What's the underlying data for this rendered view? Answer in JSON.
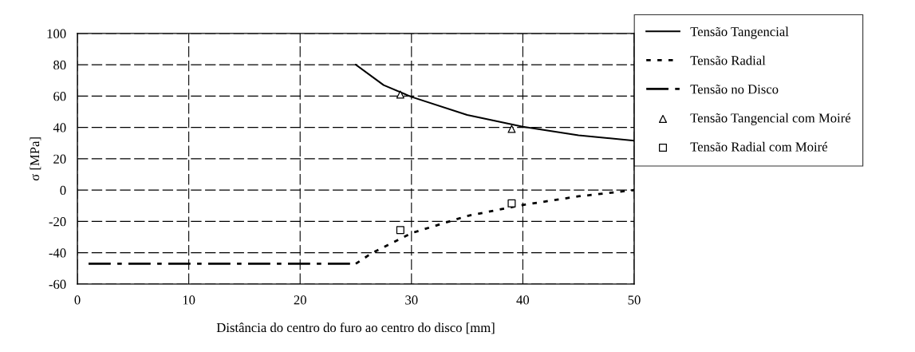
{
  "chart_data": {
    "type": "line",
    "xlabel": "Distância do centro do furo ao centro do disco [mm]",
    "ylabel": "σ [MPa]",
    "xlim": [
      0,
      50
    ],
    "xticks": [
      0,
      10,
      20,
      30,
      40,
      50
    ],
    "ylim": [
      -60,
      100
    ],
    "yticks": [
      -60,
      -40,
      -20,
      0,
      20,
      40,
      60,
      80,
      100
    ],
    "grid": true,
    "legend": "right",
    "series": [
      {
        "name": "Tensão Tangencial",
        "line_style": "solid",
        "color": "#000000",
        "x": [
          25,
          27.5,
          30,
          35,
          40,
          45,
          50
        ],
        "values": [
          80,
          67,
          59.5,
          48,
          40.5,
          35,
          31.5
        ]
      },
      {
        "name": "Tensão Radial",
        "line_style": "dotted",
        "color": "#000000",
        "x": [
          25,
          26.5,
          30,
          35,
          40,
          45,
          50
        ],
        "values": [
          -47,
          -40,
          -27.5,
          -16.5,
          -9.5,
          -4,
          0
        ]
      },
      {
        "name": "Tensão no Disco",
        "line_style": "dashdot",
        "color": "#000000",
        "x": [
          1,
          25
        ],
        "values": [
          -47,
          -47
        ]
      },
      {
        "name": "Tensão Tangencial com Moiré",
        "type": "scatter",
        "marker": "triangle",
        "color": "#000000",
        "x": [
          29,
          39
        ],
        "values": [
          61,
          39
        ]
      },
      {
        "name": "Tensão Radial com Moiré",
        "type": "scatter",
        "marker": "square",
        "color": "#000000",
        "x": [
          29,
          39
        ],
        "values": [
          -25.5,
          -8.5
        ]
      }
    ]
  }
}
